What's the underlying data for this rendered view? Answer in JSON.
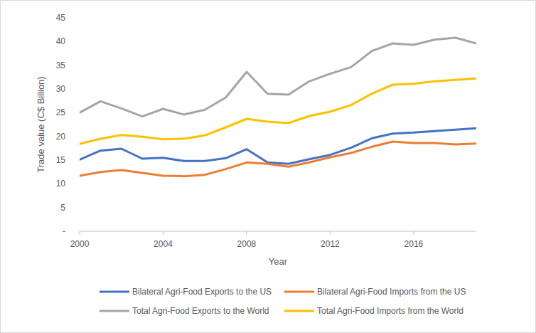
{
  "chart_data": {
    "type": "line",
    "x_label": "Year",
    "y_label": "Trade value (C$ Billion)",
    "x": [
      2000,
      2001,
      2002,
      2003,
      2004,
      2005,
      2006,
      2007,
      2008,
      2009,
      2010,
      2011,
      2012,
      2013,
      2014,
      2015,
      2016,
      2017,
      2018,
      2019
    ],
    "xlim": [
      2000,
      2019
    ],
    "xticks": [
      2000,
      2004,
      2008,
      2012,
      2016
    ],
    "ylim": [
      0,
      45
    ],
    "yticks": [
      {
        "value": 0,
        "label": "-"
      },
      5,
      10,
      15,
      20,
      25,
      30,
      35,
      40,
      45
    ],
    "grid": false,
    "legend": "bottom",
    "series": [
      {
        "name": "Bilateral Agri-Food Exports to the US",
        "color": "#4472C4",
        "values": [
          15.1,
          17.0,
          17.4,
          15.3,
          15.5,
          14.8,
          14.8,
          15.4,
          17.3,
          14.5,
          14.2,
          15.2,
          16.1,
          17.6,
          19.6,
          20.6,
          20.8,
          21.1,
          21.4,
          21.7
        ]
      },
      {
        "name": "Bilateral Agri-Food Imports from the US",
        "color": "#ED7D31",
        "values": [
          11.7,
          12.5,
          12.9,
          12.3,
          11.7,
          11.6,
          11.9,
          13.1,
          14.5,
          14.2,
          13.6,
          14.5,
          15.6,
          16.5,
          17.8,
          18.9,
          18.6,
          18.6,
          18.3,
          18.5
        ]
      },
      {
        "name": "Total Agri-Food Exports to the World",
        "color": "#A5A5A5",
        "values": [
          25.0,
          27.4,
          25.9,
          24.2,
          25.8,
          24.6,
          25.6,
          28.2,
          33.6,
          29.0,
          28.8,
          31.6,
          33.2,
          34.6,
          38.0,
          39.6,
          39.3,
          40.4,
          40.8,
          39.6
        ]
      },
      {
        "name": "Total Agri-Food Imports from the World",
        "color": "#FFC000",
        "values": [
          18.4,
          19.5,
          20.3,
          19.9,
          19.4,
          19.5,
          20.2,
          21.9,
          23.7,
          23.1,
          22.8,
          24.3,
          25.2,
          26.6,
          29.0,
          30.9,
          31.1,
          31.6,
          31.9,
          32.2
        ]
      }
    ]
  }
}
